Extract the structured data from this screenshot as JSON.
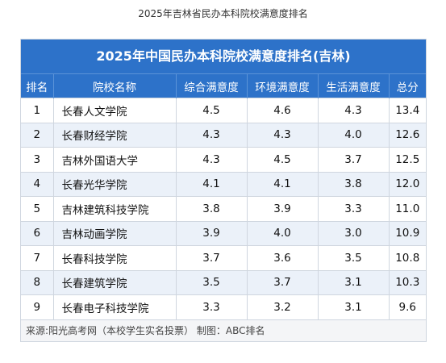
{
  "caption": "2025年吉林省民办本科院校满意度排名",
  "table": {
    "title": "2025年中国民办本科院校满意度排名(吉林)",
    "headers": [
      "排名",
      "院校名称",
      "综合满意度",
      "环境满意度",
      "生活满意度",
      "总分"
    ],
    "rows": [
      [
        "1",
        "长春人文学院",
        "4.5",
        "4.6",
        "4.3",
        "13.4"
      ],
      [
        "2",
        "长春财经学院",
        "4.3",
        "4.3",
        "4.0",
        "12.6"
      ],
      [
        "3",
        "吉林外国语大学",
        "4.3",
        "4.5",
        "3.7",
        "12.5"
      ],
      [
        "4",
        "长春光华学院",
        "4.1",
        "4.1",
        "3.8",
        "12.0"
      ],
      [
        "5",
        "吉林建筑科技学院",
        "3.8",
        "3.9",
        "3.3",
        "11.0"
      ],
      [
        "6",
        "吉林动画学院",
        "3.9",
        "4.0",
        "3.0",
        "10.9"
      ],
      [
        "7",
        "长春科技学院",
        "3.7",
        "3.6",
        "3.5",
        "10.8"
      ],
      [
        "8",
        "长春建筑学院",
        "3.5",
        "3.7",
        "3.1",
        "10.3"
      ],
      [
        "9",
        "长春电子科技学院",
        "3.3",
        "3.2",
        "3.1",
        "9.6"
      ]
    ]
  },
  "footer": {
    "source": "来源:阳光高考网（本校学生实名投票）  制图：ABC排名"
  },
  "colors": {
    "header_blue": "#2d72c9",
    "stripe": "#ebf1f9"
  }
}
